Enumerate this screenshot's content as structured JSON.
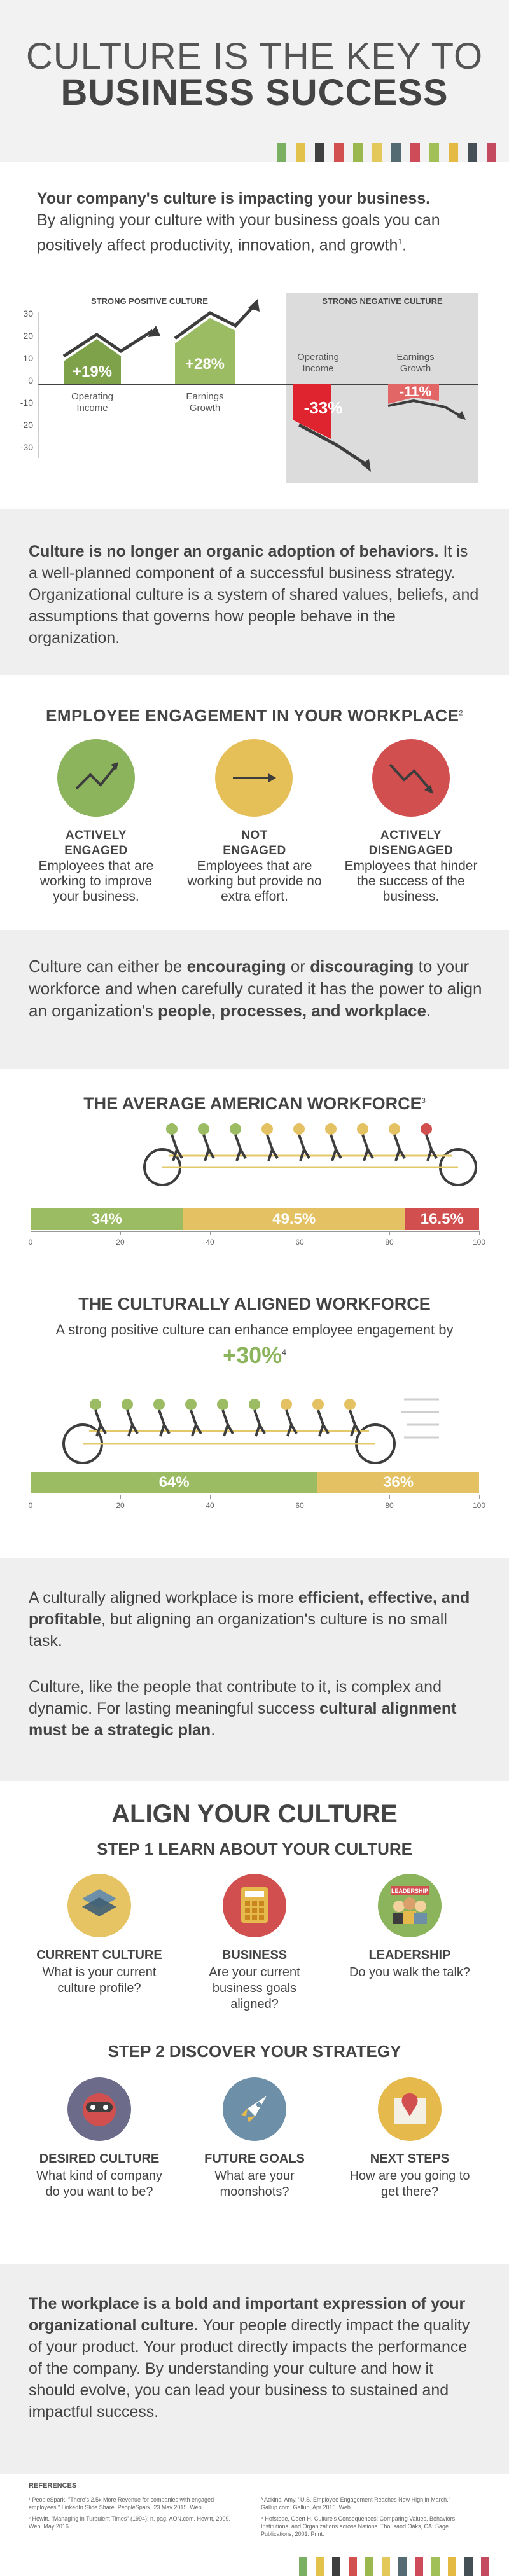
{
  "header": {
    "title_line1": "CULTURE IS THE KEY TO",
    "title_line2": "BUSINESS SUCCESS",
    "stripe_colors": [
      "#7bb062",
      "#e2c24a",
      "#3f3f3f",
      "#d25050",
      "#9ab84d",
      "#e5c85b",
      "#556b73",
      "#ce4b5a",
      "#a1c158",
      "#e4b944",
      "#445056",
      "#c44a60"
    ]
  },
  "intro": {
    "bold": "Your company's culture is impacting your business.",
    "text": "By aligning your culture with your business goals you can positively affect productivity, innovation, and growth",
    "footnote": "1"
  },
  "impact_chart": {
    "positive_title": "STRONG POSITIVE CULTURE",
    "negative_title": "STRONG NEGATIVE CULTURE",
    "yticks": [
      "30",
      "20",
      "10",
      "0",
      "-10",
      "-20",
      "-30"
    ],
    "items": [
      {
        "value": "+19%",
        "label1": "Operating",
        "label2": "Income"
      },
      {
        "value": "+28%",
        "label1": "Earnings",
        "label2": "Growth"
      },
      {
        "value": "-33%",
        "label1": "Operating",
        "label2": "Income"
      },
      {
        "value": "-11%",
        "label1": "Earnings",
        "label2": "Growth"
      }
    ]
  },
  "culture_def": {
    "bold": "Culture is no longer an organic adoption of behaviors.",
    "text": "It is a well-planned component of a successful business strategy. Organizational culture is a system of shared values, beliefs, and assumptions that governs how people behave in the organization."
  },
  "engagement": {
    "title": "EMPLOYEE ENGAGEMENT IN YOUR WORKPLACE",
    "footnote": "2",
    "items": [
      {
        "title1": "ACTIVELY",
        "title2": "ENGAGED",
        "desc": "Employees that are working to improve your business.",
        "color": "#8cb45c"
      },
      {
        "title1": "NOT",
        "title2": "ENGAGED",
        "desc": "Employees that are working but provide no extra effort.",
        "color": "#e5c059"
      },
      {
        "title1": "ACTIVELY",
        "title2": "DISENGAGED",
        "desc": "Employees that hinder the success of the business.",
        "color": "#d24f4f"
      }
    ]
  },
  "align_text": {
    "p1": "Culture can either be ",
    "b1": "encouraging",
    "p2": " or ",
    "b2": "discouraging",
    "p3": " to your workforce and when carefully curated it has the power to align an organization's ",
    "b3": "people, processes, and workplace",
    "p4": "."
  },
  "workforce": {
    "title": "THE AVERAGE AMERICAN WORKFORCE",
    "footnote": "3",
    "segments": [
      {
        "label": "34%",
        "value": 34,
        "color": "#9bbc62"
      },
      {
        "label": "49.5%",
        "value": 49.5,
        "color": "#e4c264"
      },
      {
        "label": "16.5%",
        "value": 16.5,
        "color": "#d14f4f"
      }
    ],
    "ticks": [
      "0",
      "20",
      "40",
      "60",
      "80",
      "100"
    ]
  },
  "aligned": {
    "title": "THE CULTURALLY ALIGNED WORKFORCE",
    "subtitle": "A strong positive culture can enhance employee engagement by",
    "big": "+30%",
    "footnote": "4",
    "segments": [
      {
        "label": "64%",
        "value": 64,
        "color": "#9bbc62"
      },
      {
        "label": "36%",
        "value": 36,
        "color": "#e4c264"
      }
    ],
    "ticks": [
      "0",
      "20",
      "40",
      "60",
      "80",
      "100"
    ]
  },
  "efficient": {
    "p1": "A culturally aligned workplace is more ",
    "b1": "efficient, effective, and profitable",
    "p2": ", but aligning an organization's culture is no small task.",
    "p3": "Culture, like the people that contribute to it, is complex and dynamic. For lasting meaningful success ",
    "b2": "cultural alignment must be a strategic plan",
    "p4": "."
  },
  "align_culture": {
    "title": "ALIGN YOUR CULTURE",
    "step1": "STEP 1 LEARN ABOUT YOUR CULTURE",
    "step1_items": [
      {
        "title": "CURRENT CULTURE",
        "desc": "What is your current culture profile?",
        "color": "#e7c463",
        "icon": "layers-icon"
      },
      {
        "title": "BUSINESS",
        "desc": "Are your current business goals aligned?",
        "color": "#d24f4f",
        "icon": "calculator-icon"
      },
      {
        "title": "LEADERSHIP",
        "desc": "Do you walk the talk?",
        "color": "#8cb45c",
        "icon": "leadership-icon",
        "badge": "LEADERSHIP"
      }
    ],
    "step2": "STEP 2 DISCOVER YOUR STRATEGY",
    "step2_items": [
      {
        "title": "DESIRED CULTURE",
        "desc": "What kind of company do you want to be?",
        "color": "#6d6b8a",
        "icon": "mask-icon"
      },
      {
        "title": "FUTURE GOALS",
        "desc": "What are your moonshots?",
        "color": "#6e8fa8",
        "icon": "rocket-icon"
      },
      {
        "title": "NEXT STEPS",
        "desc": "How are you going to get there?",
        "color": "#e6b94c",
        "icon": "map-pin-icon"
      }
    ]
  },
  "closing": {
    "bold": "The workplace is a bold and important expression of your organizational culture.",
    "text": " Your people directly impact the quality of your product. Your product directly impacts the performance of the company. By understanding your culture and how it should evolve, you can lead your business to sustained and impactful success."
  },
  "references": {
    "title": "REFERENCES",
    "left": [
      "¹ PeopleSpark. \"There's 2.5x More Revenue for companies with engaged employees.\" LinkedIn Slide Share. PeopleSpark, 23 May 2015. Web.",
      "² Hewitt. \"Managing in Turbulent Times\" (1994): n. pag. AON.com. Hewitt, 2009. Web. May 2016."
    ],
    "right": [
      "³ Adkins, Amy. \"U.S. Employee Engagement Reaches New High in March.\" Gallup.com. Gallup, Apr 2016. Web.",
      "⁴ Hofstede, Geert H. Culture's Consequences: Comparing Values, Behaviors, Institutions, and Organizations across Nations. Thousand Oaks, CA: Sage Publications, 2001. Print."
    ]
  }
}
